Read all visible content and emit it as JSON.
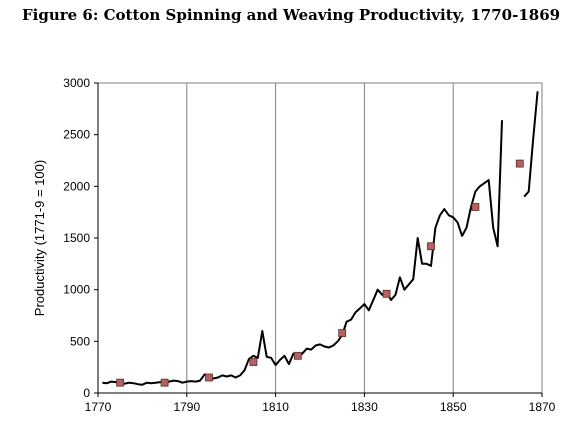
{
  "title": "Figure 6: Cotton Spinning and Weaving Productivity, 1770-1869",
  "chart_data": {
    "type": "line",
    "ylabel": "Productivity (1771-9 = 100)",
    "xlabel": "",
    "xlim": [
      1770,
      1870
    ],
    "ylim": [
      0,
      3000
    ],
    "x_ticks": [
      1770,
      1790,
      1810,
      1830,
      1850,
      1870
    ],
    "y_ticks": [
      0,
      500,
      1000,
      1500,
      2000,
      2500,
      3000
    ],
    "grid": "vertical",
    "line_color": "#000000",
    "marker_color": "#b86060",
    "series": [
      {
        "type": "line",
        "x": [
          1771,
          1772,
          1773,
          1774,
          1775,
          1776,
          1777,
          1778,
          1779,
          1780,
          1781,
          1782,
          1783,
          1784,
          1785,
          1786,
          1787,
          1788,
          1789,
          1790,
          1791,
          1792,
          1793,
          1794,
          1795,
          1796,
          1797,
          1798,
          1799,
          1800,
          1801,
          1802,
          1803,
          1804,
          1805,
          1806,
          1807,
          1808,
          1809,
          1810,
          1811,
          1812,
          1813,
          1814,
          1815,
          1816,
          1817,
          1818,
          1819,
          1820,
          1821,
          1822,
          1823,
          1824,
          1825,
          1826,
          1827,
          1828,
          1829,
          1830,
          1831,
          1832,
          1833,
          1834,
          1835,
          1836,
          1837,
          1838,
          1839,
          1840,
          1841,
          1842,
          1843,
          1844,
          1845,
          1846,
          1847,
          1848,
          1849,
          1850,
          1851,
          1852,
          1853,
          1854,
          1855,
          1856,
          1857,
          1858,
          1859,
          1860,
          1861
        ],
        "y": [
          100,
          95,
          110,
          105,
          100,
          90,
          100,
          95,
          85,
          80,
          100,
          95,
          100,
          105,
          100,
          110,
          120,
          115,
          100,
          110,
          115,
          110,
          120,
          180,
          150,
          140,
          150,
          170,
          160,
          170,
          150,
          170,
          220,
          330,
          360,
          340,
          600,
          350,
          340,
          270,
          320,
          360,
          280,
          380,
          360,
          380,
          430,
          420,
          460,
          470,
          450,
          440,
          460,
          500,
          560,
          690,
          710,
          780,
          820,
          860,
          800,
          900,
          1000,
          950,
          980,
          900,
          950,
          1120,
          1000,
          1050,
          1100,
          1500,
          1250,
          1250,
          1230,
          1600,
          1720,
          1780,
          1720,
          1700,
          1650,
          1520,
          1600,
          1800,
          1950,
          2000,
          2030,
          2060,
          1600,
          1420,
          2640
        ]
      },
      {
        "type": "line",
        "x": [
          1866,
          1867,
          1868,
          1869
        ],
        "y": [
          1900,
          1950,
          2450,
          2920
        ]
      },
      {
        "type": "scatter",
        "x": [
          1775,
          1785,
          1795,
          1805,
          1815,
          1825,
          1835,
          1845,
          1855,
          1865
        ],
        "y": [
          100,
          100,
          150,
          300,
          360,
          580,
          960,
          1420,
          1800,
          2220
        ]
      }
    ]
  }
}
